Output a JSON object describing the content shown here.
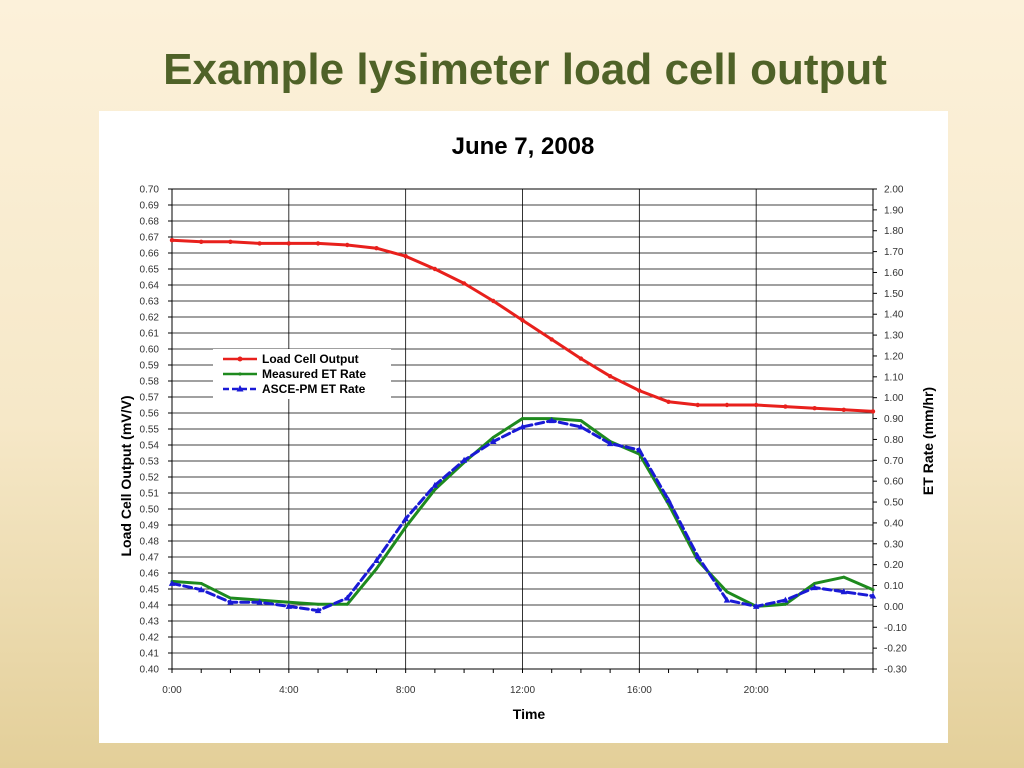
{
  "slide": {
    "title": "Example lysimeter load cell output"
  },
  "chart_data": {
    "type": "line",
    "title": "June 7, 2008",
    "xlabel": "Time",
    "ylabel_left": "Load Cell Output (mV/V)",
    "ylabel_right": "ET Rate (mm/hr)",
    "xlim": [
      0,
      24
    ],
    "ylim_left": [
      0.4,
      0.7
    ],
    "ylim_right": [
      -0.3,
      2.0
    ],
    "x_ticks": [
      "0:00",
      "4:00",
      "8:00",
      "12:00",
      "16:00",
      "20:00"
    ],
    "x_tick_hours": [
      0,
      4,
      8,
      12,
      16,
      20
    ],
    "y_left_ticks": [
      "0.70",
      "0.69",
      "0.68",
      "0.67",
      "0.66",
      "0.65",
      "0.64",
      "0.63",
      "0.62",
      "0.61",
      "0.60",
      "0.59",
      "0.58",
      "0.57",
      "0.56",
      "0.55",
      "0.54",
      "0.53",
      "0.52",
      "0.51",
      "0.50",
      "0.49",
      "0.48",
      "0.47",
      "0.46",
      "0.45",
      "0.44",
      "0.43",
      "0.42",
      "0.41",
      "0.40"
    ],
    "y_right_ticks": [
      "2.00",
      "1.90",
      "1.80",
      "1.70",
      "1.60",
      "1.50",
      "1.40",
      "1.30",
      "1.20",
      "1.10",
      "1.00",
      "0.90",
      "0.80",
      "0.70",
      "0.60",
      "0.50",
      "0.40",
      "0.30",
      "0.20",
      "0.10",
      "0.00",
      "-0.10",
      "-0.20",
      "-0.30"
    ],
    "grid": true,
    "legend_position": "left",
    "colors": {
      "load_cell": "#e8201c",
      "measured_et": "#1e8a1e",
      "ascepm_et": "#1a1ad6"
    },
    "series": [
      {
        "name": "Load Cell Output",
        "axis": "left",
        "x": [
          0,
          1,
          2,
          3,
          4,
          5,
          6,
          7,
          8,
          9,
          10,
          11,
          12,
          13,
          14,
          15,
          16,
          17,
          18,
          19,
          20,
          21,
          22,
          23,
          24
        ],
        "y": [
          0.668,
          0.667,
          0.667,
          0.666,
          0.666,
          0.666,
          0.665,
          0.663,
          0.658,
          0.65,
          0.641,
          0.63,
          0.618,
          0.606,
          0.594,
          0.583,
          0.574,
          0.567,
          0.565,
          0.565,
          0.565,
          0.564,
          0.563,
          0.562,
          0.561
        ]
      },
      {
        "name": "Measured ET Rate",
        "axis": "right",
        "x": [
          0,
          1,
          2,
          3,
          4,
          5,
          6,
          7,
          8,
          9,
          10,
          11,
          12,
          13,
          14,
          15,
          16,
          17,
          18,
          19,
          20,
          21,
          22,
          23,
          24
        ],
        "y": [
          0.12,
          0.11,
          0.04,
          0.03,
          0.02,
          0.01,
          0.01,
          0.18,
          0.38,
          0.56,
          0.69,
          0.81,
          0.9,
          0.9,
          0.89,
          0.79,
          0.73,
          0.49,
          0.22,
          0.07,
          0.0,
          0.01,
          0.11,
          0.14,
          0.08
        ]
      },
      {
        "name": "ASCE-PM ET Rate",
        "axis": "right",
        "x": [
          0,
          1,
          2,
          3,
          4,
          5,
          6,
          7,
          8,
          9,
          10,
          11,
          12,
          13,
          14,
          15,
          16,
          17,
          18,
          19,
          20,
          21,
          22,
          23,
          24
        ],
        "y": [
          0.11,
          0.08,
          0.02,
          0.02,
          0.0,
          -0.02,
          0.04,
          0.22,
          0.42,
          0.58,
          0.7,
          0.79,
          0.86,
          0.89,
          0.86,
          0.78,
          0.75,
          0.51,
          0.24,
          0.03,
          0.0,
          0.03,
          0.09,
          0.07,
          0.05
        ]
      }
    ]
  }
}
